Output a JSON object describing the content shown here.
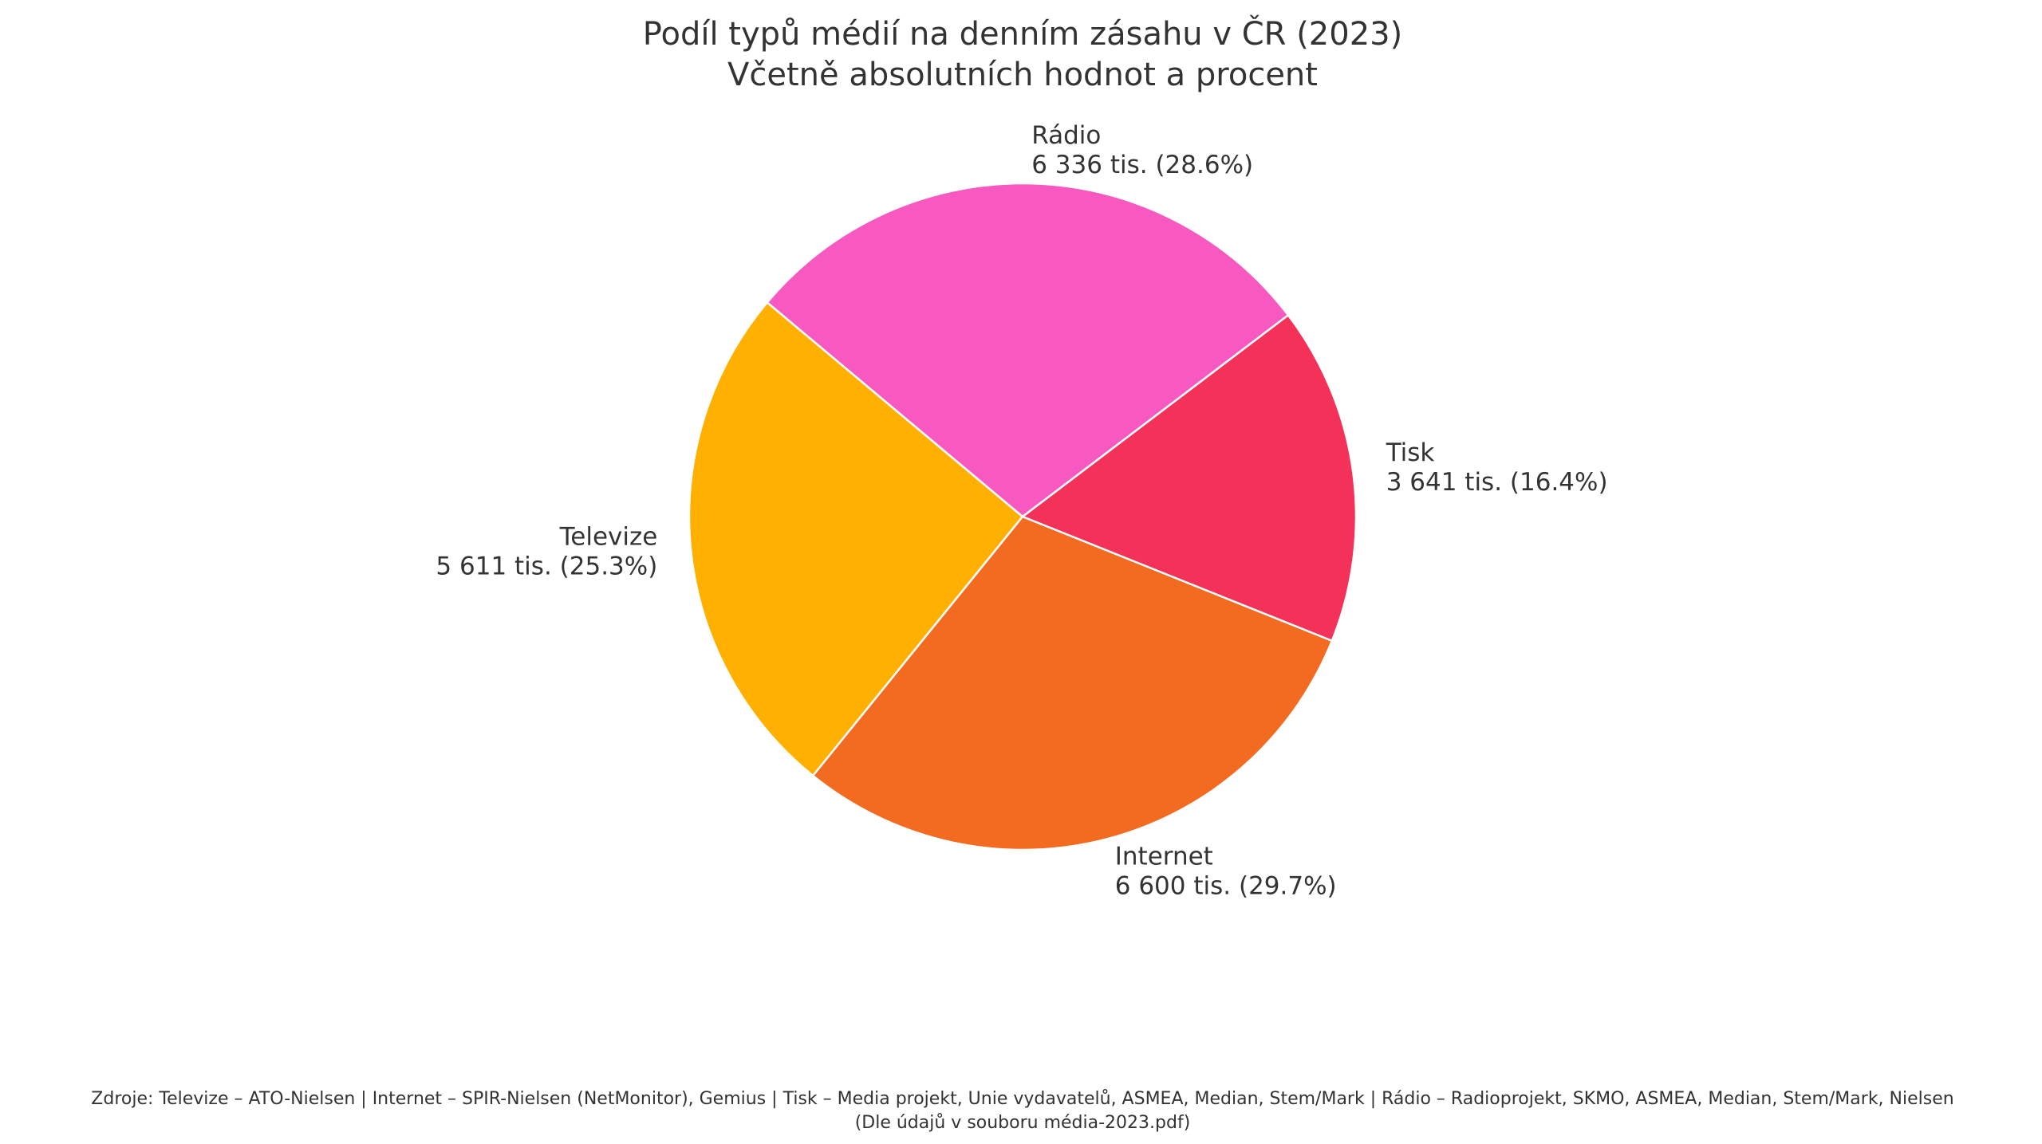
{
  "chart_data": {
    "type": "pie",
    "title": "Podíl typů médií na denním zásahu v ČR (2023)",
    "subtitle": "Včetně absolutních hodnot a procent",
    "slices": [
      {
        "name": "Televize",
        "value": 5611,
        "value_label": "5 611 tis. (25.3%)",
        "percent": 25.3,
        "color": "#FFB000"
      },
      {
        "name": "Internet",
        "value": 6600,
        "value_label": "6 600 tis. (29.7%)",
        "percent": 29.7,
        "color": "#F26B21"
      },
      {
        "name": "Tisk",
        "value": 3641,
        "value_label": "3 641 tis. (16.4%)",
        "percent": 16.4,
        "color": "#F43259"
      },
      {
        "name": "Rádio",
        "value": 6336,
        "value_label": "6 336 tis. (28.6%)",
        "percent": 28.6,
        "color": "#F759C0"
      }
    ],
    "start_angle_deg": 140,
    "direction": "counterclockwise",
    "source_line1": "Zdroje: Televize – ATO-Nielsen | Internet – SPIR-Nielsen (NetMonitor), Gemius | Tisk – Media projekt, Unie vydavatelů, ASMEA, Median, Stem/Mark | Rádio – Radioprojekt, SKMO, ASMEA, Median, Stem/Mark, Nielsen",
    "source_line2": "(Dle údajů v souboru média-2023.pdf)"
  }
}
